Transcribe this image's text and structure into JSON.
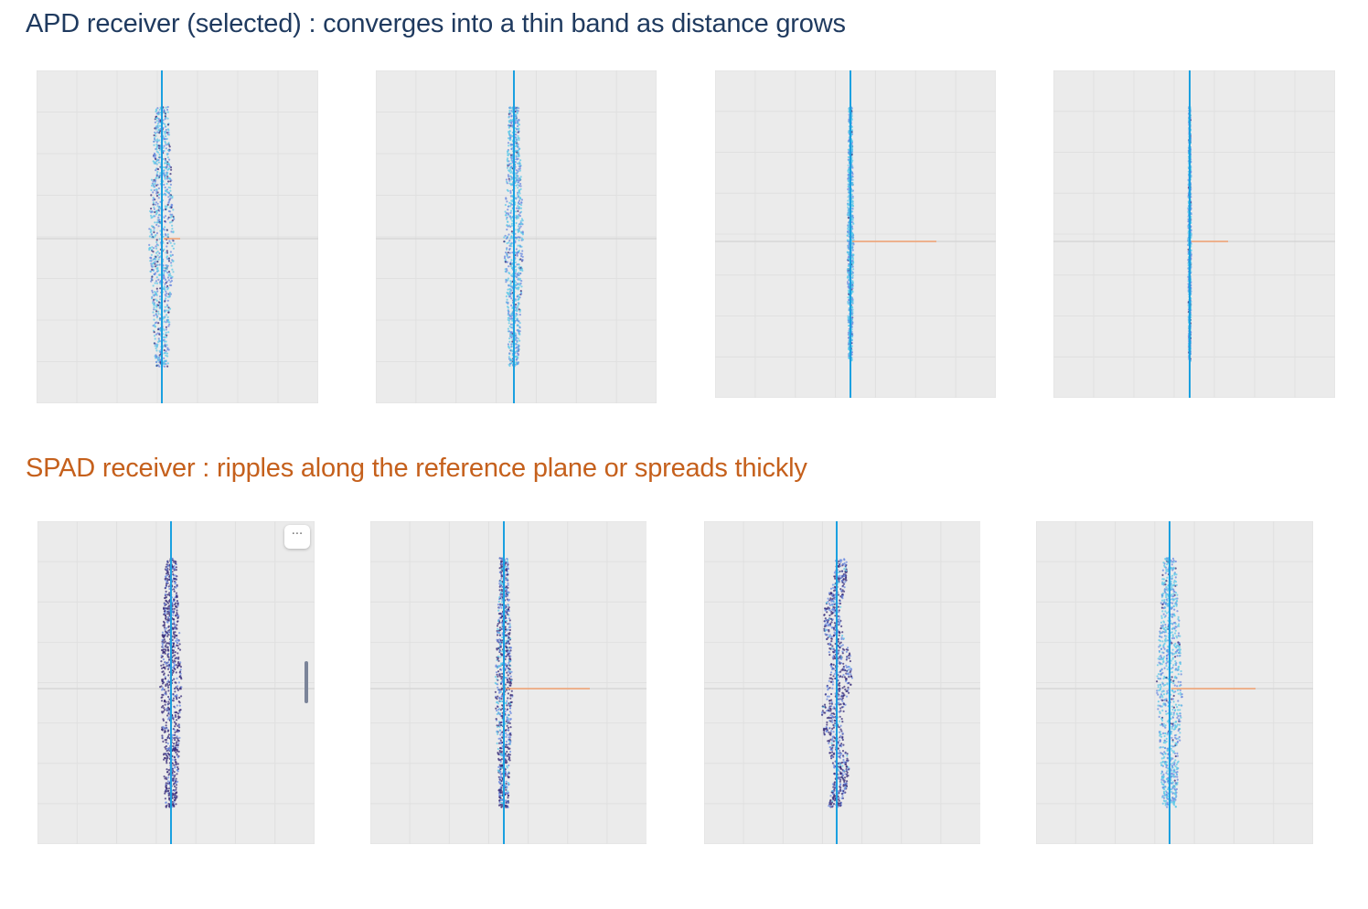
{
  "apd_section": {
    "title": "APD receiver (selected) : converges into a thin band as distance grows",
    "color": "#1f3a5f",
    "panels": [
      {
        "spread": 12,
        "dark": 0.15,
        "offset": 0,
        "orange_len": 18
      },
      {
        "spread": 9,
        "dark": 0.05,
        "offset": 0,
        "orange_len": 0
      },
      {
        "spread": 3,
        "dark": 0.02,
        "offset": 0,
        "orange_len": 92
      },
      {
        "spread": 1.5,
        "dark": 0.05,
        "offset": 0,
        "orange_len": 40
      }
    ]
  },
  "spad_section": {
    "title": "SPAD receiver : ripples along the reference plane or spreads thickly",
    "color": "#c5601c",
    "panels": [
      {
        "spread": 10,
        "dark": 0.75,
        "offset": 0,
        "orange_len": 0
      },
      {
        "spread": 8,
        "dark": 0.45,
        "offset": 0,
        "orange_len": 92
      },
      {
        "spread": 11,
        "dark": 0.6,
        "offset": -5,
        "orange_len": 0
      },
      {
        "spread": 12,
        "dark": 0.05,
        "offset": 0,
        "orange_len": 92
      }
    ]
  },
  "colors": {
    "axis_line": "#1aa0e0",
    "panel_bg": "#ebebeb",
    "grid": "#e0e0e0",
    "ref_plane": "#d4d4d4",
    "orange_line": "#f0a070",
    "point_light": "#5ec8e8",
    "point_mid": "#6a8ae0",
    "point_dark": "#3a2d7a"
  },
  "icons": {
    "menu": "more-horizontal-icon"
  },
  "menu_label": "···"
}
